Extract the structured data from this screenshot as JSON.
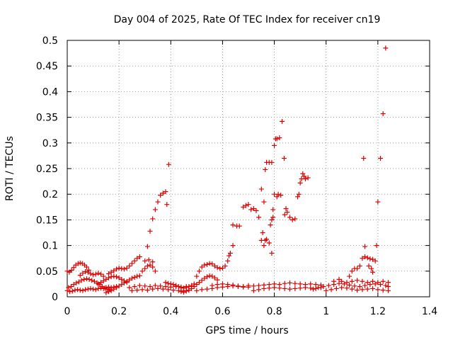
{
  "chart_data": {
    "type": "scatter",
    "title": "Day 004 of 2025, Rate Of TEC Index for receiver cn19",
    "xlabel": "GPS time / hours",
    "ylabel": "ROTI / TECUs",
    "xlim": [
      0,
      1.4
    ],
    "ylim": [
      0,
      0.5
    ],
    "grid": true,
    "marker": "+",
    "color": "#dd0000",
    "x_ticks": [
      {
        "value": 0,
        "label": "0"
      },
      {
        "value": 0.2,
        "label": "0.2"
      },
      {
        "value": 0.4,
        "label": "0.4"
      },
      {
        "value": 0.6,
        "label": "0.6"
      },
      {
        "value": 0.8,
        "label": "0.8"
      },
      {
        "value": 1.0,
        "label": "1"
      },
      {
        "value": 1.2,
        "label": "1.2"
      },
      {
        "value": 1.4,
        "label": "1.4"
      }
    ],
    "y_ticks": [
      {
        "value": 0,
        "label": "0"
      },
      {
        "value": 0.05,
        "label": "0.05"
      },
      {
        "value": 0.1,
        "label": "0.1"
      },
      {
        "value": 0.15,
        "label": "0.15"
      },
      {
        "value": 0.2,
        "label": "0.2"
      },
      {
        "value": 0.25,
        "label": "0.25"
      },
      {
        "value": 0.3,
        "label": "0.3"
      },
      {
        "value": 0.35,
        "label": "0.35"
      },
      {
        "value": 0.4,
        "label": "0.4"
      },
      {
        "value": 0.45,
        "label": "0.45"
      },
      {
        "value": 0.5,
        "label": "0.5"
      }
    ],
    "points": [
      [
        0.0,
        0.05
      ],
      [
        0.008,
        0.048
      ],
      [
        0.017,
        0.052
      ],
      [
        0.025,
        0.057
      ],
      [
        0.033,
        0.062
      ],
      [
        0.042,
        0.065
      ],
      [
        0.05,
        0.066
      ],
      [
        0.058,
        0.065
      ],
      [
        0.067,
        0.062
      ],
      [
        0.075,
        0.058
      ],
      [
        0.083,
        0.052
      ],
      [
        0.005,
        0.018
      ],
      [
        0.015,
        0.02
      ],
      [
        0.025,
        0.024
      ],
      [
        0.035,
        0.027
      ],
      [
        0.045,
        0.029
      ],
      [
        0.055,
        0.032
      ],
      [
        0.065,
        0.034
      ],
      [
        0.075,
        0.035
      ],
      [
        0.085,
        0.034
      ],
      [
        0.095,
        0.032
      ],
      [
        0.105,
        0.03
      ],
      [
        0.115,
        0.027
      ],
      [
        0.125,
        0.024
      ],
      [
        0.135,
        0.02
      ],
      [
        0.145,
        0.017
      ],
      [
        0.155,
        0.015
      ],
      [
        0.165,
        0.014
      ],
      [
        0.0,
        0.012
      ],
      [
        0.01,
        0.01
      ],
      [
        0.02,
        0.011
      ],
      [
        0.03,
        0.013
      ],
      [
        0.04,
        0.014
      ],
      [
        0.05,
        0.013
      ],
      [
        0.06,
        0.012
      ],
      [
        0.07,
        0.014
      ],
      [
        0.08,
        0.015
      ],
      [
        0.09,
        0.016
      ],
      [
        0.1,
        0.015
      ],
      [
        0.11,
        0.014
      ],
      [
        0.12,
        0.016
      ],
      [
        0.13,
        0.017
      ],
      [
        0.14,
        0.016
      ],
      [
        0.15,
        0.018
      ],
      [
        0.16,
        0.019
      ],
      [
        0.17,
        0.018
      ],
      [
        0.18,
        0.019
      ],
      [
        0.19,
        0.02
      ],
      [
        0.05,
        0.042
      ],
      [
        0.06,
        0.046
      ],
      [
        0.07,
        0.049
      ],
      [
        0.08,
        0.048
      ],
      [
        0.09,
        0.045
      ],
      [
        0.1,
        0.043
      ],
      [
        0.11,
        0.044
      ],
      [
        0.12,
        0.046
      ],
      [
        0.13,
        0.044
      ],
      [
        0.14,
        0.04
      ],
      [
        0.12,
        0.025
      ],
      [
        0.13,
        0.028
      ],
      [
        0.14,
        0.031
      ],
      [
        0.15,
        0.034
      ],
      [
        0.16,
        0.037
      ],
      [
        0.17,
        0.039
      ],
      [
        0.18,
        0.04
      ],
      [
        0.19,
        0.039
      ],
      [
        0.2,
        0.037
      ],
      [
        0.21,
        0.034
      ],
      [
        0.22,
        0.031
      ],
      [
        0.23,
        0.028
      ],
      [
        0.15,
        0.008
      ],
      [
        0.16,
        0.01
      ],
      [
        0.17,
        0.012
      ],
      [
        0.18,
        0.015
      ],
      [
        0.19,
        0.018
      ],
      [
        0.2,
        0.021
      ],
      [
        0.21,
        0.024
      ],
      [
        0.22,
        0.027
      ],
      [
        0.23,
        0.03
      ],
      [
        0.24,
        0.033
      ],
      [
        0.25,
        0.036
      ],
      [
        0.26,
        0.038
      ],
      [
        0.27,
        0.04
      ],
      [
        0.28,
        0.041
      ],
      [
        0.16,
        0.045
      ],
      [
        0.17,
        0.048
      ],
      [
        0.18,
        0.051
      ],
      [
        0.19,
        0.054
      ],
      [
        0.2,
        0.056
      ],
      [
        0.21,
        0.055
      ],
      [
        0.22,
        0.054
      ],
      [
        0.23,
        0.056
      ],
      [
        0.24,
        0.06
      ],
      [
        0.25,
        0.065
      ],
      [
        0.26,
        0.07
      ],
      [
        0.27,
        0.075
      ],
      [
        0.28,
        0.078
      ],
      [
        0.29,
        0.05
      ],
      [
        0.3,
        0.055
      ],
      [
        0.31,
        0.06
      ],
      [
        0.32,
        0.062
      ],
      [
        0.33,
        0.058
      ],
      [
        0.34,
        0.05
      ],
      [
        0.3,
        0.07
      ],
      [
        0.315,
        0.072
      ],
      [
        0.33,
        0.068
      ],
      [
        0.31,
        0.098
      ],
      [
        0.32,
        0.128
      ],
      [
        0.33,
        0.152
      ],
      [
        0.34,
        0.17
      ],
      [
        0.35,
        0.185
      ],
      [
        0.36,
        0.198
      ],
      [
        0.37,
        0.202
      ],
      [
        0.38,
        0.205
      ],
      [
        0.385,
        0.18
      ],
      [
        0.392,
        0.258
      ],
      [
        0.24,
        0.018
      ],
      [
        0.26,
        0.02
      ],
      [
        0.28,
        0.022
      ],
      [
        0.3,
        0.021
      ],
      [
        0.32,
        0.02
      ],
      [
        0.34,
        0.022
      ],
      [
        0.36,
        0.021
      ],
      [
        0.38,
        0.02
      ],
      [
        0.4,
        0.019
      ],
      [
        0.42,
        0.02
      ],
      [
        0.44,
        0.019
      ],
      [
        0.46,
        0.02
      ],
      [
        0.25,
        0.012
      ],
      [
        0.27,
        0.013
      ],
      [
        0.29,
        0.014
      ],
      [
        0.31,
        0.013
      ],
      [
        0.33,
        0.015
      ],
      [
        0.35,
        0.016
      ],
      [
        0.37,
        0.015
      ],
      [
        0.39,
        0.014
      ],
      [
        0.41,
        0.013
      ],
      [
        0.43,
        0.012
      ],
      [
        0.45,
        0.012
      ],
      [
        0.47,
        0.013
      ],
      [
        0.38,
        0.028
      ],
      [
        0.39,
        0.026
      ],
      [
        0.4,
        0.025
      ],
      [
        0.41,
        0.024
      ],
      [
        0.42,
        0.022
      ],
      [
        0.43,
        0.02
      ],
      [
        0.44,
        0.018
      ],
      [
        0.45,
        0.017
      ],
      [
        0.46,
        0.018
      ],
      [
        0.47,
        0.02
      ],
      [
        0.48,
        0.022
      ],
      [
        0.49,
        0.025
      ],
      [
        0.44,
        0.01
      ],
      [
        0.45,
        0.009
      ],
      [
        0.46,
        0.011
      ],
      [
        0.47,
        0.013
      ],
      [
        0.48,
        0.016
      ],
      [
        0.49,
        0.02
      ],
      [
        0.5,
        0.024
      ],
      [
        0.51,
        0.028
      ],
      [
        0.52,
        0.032
      ],
      [
        0.53,
        0.036
      ],
      [
        0.54,
        0.039
      ],
      [
        0.55,
        0.041
      ],
      [
        0.56,
        0.04
      ],
      [
        0.57,
        0.037
      ],
      [
        0.58,
        0.033
      ],
      [
        0.5,
        0.04
      ],
      [
        0.51,
        0.05
      ],
      [
        0.52,
        0.058
      ],
      [
        0.53,
        0.062
      ],
      [
        0.54,
        0.063
      ],
      [
        0.55,
        0.065
      ],
      [
        0.56,
        0.064
      ],
      [
        0.57,
        0.06
      ],
      [
        0.58,
        0.057
      ],
      [
        0.59,
        0.055
      ],
      [
        0.6,
        0.056
      ],
      [
        0.61,
        0.06
      ],
      [
        0.62,
        0.07
      ],
      [
        0.625,
        0.08
      ],
      [
        0.63,
        0.085
      ],
      [
        0.64,
        0.1
      ],
      [
        0.5,
        0.012
      ],
      [
        0.52,
        0.014
      ],
      [
        0.54,
        0.015
      ],
      [
        0.56,
        0.016
      ],
      [
        0.58,
        0.018
      ],
      [
        0.6,
        0.019
      ],
      [
        0.62,
        0.02
      ],
      [
        0.64,
        0.021
      ],
      [
        0.66,
        0.02
      ],
      [
        0.68,
        0.019
      ],
      [
        0.56,
        0.022
      ],
      [
        0.58,
        0.024
      ],
      [
        0.6,
        0.025
      ],
      [
        0.62,
        0.024
      ],
      [
        0.64,
        0.023
      ],
      [
        0.66,
        0.021
      ],
      [
        0.68,
        0.02
      ],
      [
        0.7,
        0.019
      ],
      [
        0.64,
        0.14
      ],
      [
        0.655,
        0.138
      ],
      [
        0.665,
        0.138
      ],
      [
        0.68,
        0.175
      ],
      [
        0.69,
        0.178
      ],
      [
        0.7,
        0.18
      ],
      [
        0.71,
        0.17
      ],
      [
        0.72,
        0.172
      ],
      [
        0.73,
        0.168
      ],
      [
        0.74,
        0.155
      ],
      [
        0.72,
        0.012
      ],
      [
        0.74,
        0.014
      ],
      [
        0.76,
        0.016
      ],
      [
        0.78,
        0.017
      ],
      [
        0.8,
        0.018
      ],
      [
        0.82,
        0.017
      ],
      [
        0.84,
        0.016
      ],
      [
        0.86,
        0.015
      ],
      [
        0.88,
        0.016
      ],
      [
        0.9,
        0.017
      ],
      [
        0.92,
        0.018
      ],
      [
        0.94,
        0.017
      ],
      [
        0.96,
        0.016
      ],
      [
        0.98,
        0.018
      ],
      [
        0.7,
        0.022
      ],
      [
        0.72,
        0.021
      ],
      [
        0.74,
        0.022
      ],
      [
        0.76,
        0.023
      ],
      [
        0.78,
        0.024
      ],
      [
        0.8,
        0.025
      ],
      [
        0.82,
        0.024
      ],
      [
        0.84,
        0.026
      ],
      [
        0.86,
        0.027
      ],
      [
        0.88,
        0.026
      ],
      [
        0.9,
        0.025
      ],
      [
        0.92,
        0.024
      ],
      [
        0.94,
        0.025
      ],
      [
        0.96,
        0.024
      ],
      [
        0.98,
        0.023
      ],
      [
        0.75,
        0.11
      ],
      [
        0.755,
        0.125
      ],
      [
        0.76,
        0.1
      ],
      [
        0.765,
        0.11
      ],
      [
        0.77,
        0.112
      ],
      [
        0.78,
        0.105
      ],
      [
        0.79,
        0.085
      ],
      [
        0.75,
        0.21
      ],
      [
        0.76,
        0.185
      ],
      [
        0.765,
        0.248
      ],
      [
        0.77,
        0.262
      ],
      [
        0.78,
        0.262
      ],
      [
        0.79,
        0.262
      ],
      [
        0.795,
        0.17
      ],
      [
        0.8,
        0.295
      ],
      [
        0.805,
        0.308
      ],
      [
        0.81,
        0.308
      ],
      [
        0.815,
        0.2
      ],
      [
        0.82,
        0.31
      ],
      [
        0.825,
        0.198
      ],
      [
        0.83,
        0.342
      ],
      [
        0.838,
        0.27
      ],
      [
        0.785,
        0.14
      ],
      [
        0.79,
        0.15
      ],
      [
        0.795,
        0.155
      ],
      [
        0.8,
        0.2
      ],
      [
        0.81,
        0.195
      ],
      [
        0.84,
        0.16
      ],
      [
        0.845,
        0.172
      ],
      [
        0.85,
        0.165
      ],
      [
        0.86,
        0.155
      ],
      [
        0.87,
        0.15
      ],
      [
        0.88,
        0.152
      ],
      [
        0.89,
        0.195
      ],
      [
        0.895,
        0.2
      ],
      [
        0.9,
        0.222
      ],
      [
        0.905,
        0.23
      ],
      [
        0.91,
        0.24
      ],
      [
        0.915,
        0.235
      ],
      [
        0.92,
        0.23
      ],
      [
        0.93,
        0.232
      ],
      [
        0.95,
        0.015
      ],
      [
        0.97,
        0.018
      ],
      [
        0.99,
        0.02
      ],
      [
        1.01,
        0.022
      ],
      [
        1.03,
        0.024
      ],
      [
        1.05,
        0.026
      ],
      [
        1.07,
        0.025
      ],
      [
        1.09,
        0.023
      ],
      [
        1.11,
        0.021
      ],
      [
        1.13,
        0.02
      ],
      [
        1.15,
        0.022
      ],
      [
        1.17,
        0.024
      ],
      [
        1.19,
        0.025
      ],
      [
        1.21,
        0.024
      ],
      [
        1.23,
        0.022
      ],
      [
        1.24,
        0.02
      ],
      [
        1.0,
        0.012
      ],
      [
        1.02,
        0.014
      ],
      [
        1.04,
        0.016
      ],
      [
        1.06,
        0.018
      ],
      [
        1.08,
        0.017
      ],
      [
        1.1,
        0.015
      ],
      [
        1.12,
        0.013
      ],
      [
        1.14,
        0.014
      ],
      [
        1.16,
        0.015
      ],
      [
        1.18,
        0.016
      ],
      [
        1.2,
        0.014
      ],
      [
        1.22,
        0.013
      ],
      [
        1.24,
        0.012
      ],
      [
        1.03,
        0.03
      ],
      [
        1.05,
        0.034
      ],
      [
        1.06,
        0.03
      ],
      [
        1.08,
        0.028
      ],
      [
        1.1,
        0.03
      ],
      [
        1.12,
        0.032
      ],
      [
        1.14,
        0.03
      ],
      [
        1.16,
        0.028
      ],
      [
        1.18,
        0.03
      ],
      [
        1.2,
        0.028
      ],
      [
        1.22,
        0.03
      ],
      [
        1.24,
        0.028
      ],
      [
        1.09,
        0.04
      ],
      [
        1.1,
        0.05
      ],
      [
        1.11,
        0.055
      ],
      [
        1.12,
        0.055
      ],
      [
        1.13,
        0.06
      ],
      [
        1.14,
        0.075
      ],
      [
        1.15,
        0.078
      ],
      [
        1.16,
        0.076
      ],
      [
        1.17,
        0.074
      ],
      [
        1.18,
        0.073
      ],
      [
        1.19,
        0.07
      ],
      [
        1.165,
        0.06
      ],
      [
        1.175,
        0.055
      ],
      [
        1.18,
        0.048
      ],
      [
        1.145,
        0.27
      ],
      [
        1.15,
        0.098
      ],
      [
        1.195,
        0.1
      ],
      [
        1.2,
        0.185
      ],
      [
        1.21,
        0.27
      ],
      [
        1.22,
        0.357
      ],
      [
        1.23,
        0.485
      ]
    ]
  }
}
